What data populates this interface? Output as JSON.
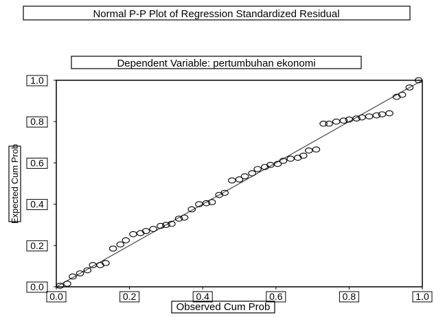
{
  "chart_data": {
    "type": "scatter",
    "title": "Normal P-P Plot of Regression Standardized Residual",
    "subtitle": "Dependent Variable: pertumbuhan ekonomi",
    "xlabel": "Observed Cum Prob",
    "ylabel": "Expected Cum Prob",
    "xlim": [
      0.0,
      1.0
    ],
    "ylim": [
      0.0,
      1.0
    ],
    "x_ticks": [
      "0.0",
      "0.2",
      "0.4",
      "0.6",
      "0.8",
      "1.0"
    ],
    "y_ticks": [
      "0.0",
      "0.2",
      "0.4",
      "0.6",
      "0.8",
      "1.0"
    ],
    "grid": false,
    "legend": "none",
    "reference_line": [
      [
        0.0,
        0.0
      ],
      [
        1.0,
        1.0
      ]
    ],
    "points": [
      [
        0.01,
        0.005
      ],
      [
        0.03,
        0.015
      ],
      [
        0.045,
        0.05
      ],
      [
        0.065,
        0.065
      ],
      [
        0.085,
        0.08
      ],
      [
        0.1,
        0.105
      ],
      [
        0.12,
        0.105
      ],
      [
        0.135,
        0.115
      ],
      [
        0.155,
        0.185
      ],
      [
        0.175,
        0.205
      ],
      [
        0.19,
        0.225
      ],
      [
        0.21,
        0.255
      ],
      [
        0.23,
        0.26
      ],
      [
        0.245,
        0.27
      ],
      [
        0.265,
        0.28
      ],
      [
        0.285,
        0.295
      ],
      [
        0.3,
        0.3
      ],
      [
        0.315,
        0.305
      ],
      [
        0.335,
        0.33
      ],
      [
        0.35,
        0.335
      ],
      [
        0.37,
        0.375
      ],
      [
        0.39,
        0.4
      ],
      [
        0.41,
        0.405
      ],
      [
        0.425,
        0.41
      ],
      [
        0.445,
        0.445
      ],
      [
        0.46,
        0.455
      ],
      [
        0.48,
        0.515
      ],
      [
        0.5,
        0.52
      ],
      [
        0.515,
        0.535
      ],
      [
        0.535,
        0.55
      ],
      [
        0.55,
        0.57
      ],
      [
        0.57,
        0.58
      ],
      [
        0.585,
        0.59
      ],
      [
        0.605,
        0.595
      ],
      [
        0.62,
        0.61
      ],
      [
        0.64,
        0.62
      ],
      [
        0.66,
        0.625
      ],
      [
        0.675,
        0.635
      ],
      [
        0.69,
        0.66
      ],
      [
        0.71,
        0.665
      ],
      [
        0.73,
        0.79
      ],
      [
        0.745,
        0.79
      ],
      [
        0.765,
        0.8
      ],
      [
        0.785,
        0.805
      ],
      [
        0.8,
        0.81
      ],
      [
        0.82,
        0.815
      ],
      [
        0.835,
        0.82
      ],
      [
        0.855,
        0.825
      ],
      [
        0.875,
        0.83
      ],
      [
        0.89,
        0.835
      ],
      [
        0.91,
        0.84
      ],
      [
        0.93,
        0.92
      ],
      [
        0.945,
        0.93
      ],
      [
        0.965,
        0.965
      ],
      [
        0.99,
        1.0
      ]
    ]
  }
}
